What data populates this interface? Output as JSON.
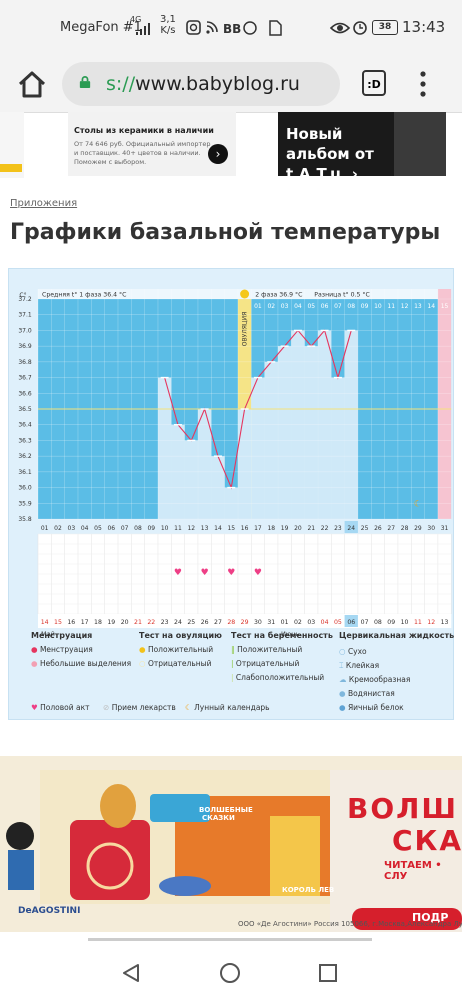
{
  "status_bar": {
    "carrier": "MegaFon #1",
    "network": "4G",
    "speed": "3,1",
    "speed_unit": "K/s",
    "battery": "38",
    "time": "13:43"
  },
  "browser": {
    "url_scheme": "s://",
    "url_host": "www.babyblog.ru",
    "tabs_label": ":D"
  },
  "top_ad": {
    "headline": "Столы из керамики в наличии",
    "body": "От 74 646 руб. Официальный импортер и поставщик. 40+ цветов в наличии. Поможем с выбором.",
    "side_label": "Новый альбом от t.A.T.u. ›"
  },
  "breadcrumb": "Приложения",
  "page_title": "Графики базальной температуры",
  "chart": {
    "unit": "C°",
    "phase1_label": "Средняя t° 1 фаза 36.4 °C",
    "phase2_label": "2 фаза 36.9 °C",
    "diff_label": "Разница t° 0.5 °C",
    "ovulation_label": "ОВУЛЯЦИЯ",
    "cycle_days_top": [
      "01",
      "02",
      "03",
      "04",
      "05",
      "06",
      "07",
      "08",
      "09",
      "10",
      "11",
      "12",
      "13",
      "14",
      "15",
      "16"
    ],
    "cycle_days_top_start": 16,
    "bottom_dates": [
      "14",
      "15",
      "16",
      "17",
      "18",
      "19",
      "20",
      "21",
      "22",
      "23",
      "24",
      "25",
      "26",
      "27",
      "28",
      "29",
      "30",
      "31",
      "01",
      "02",
      "03",
      "04",
      "05",
      "06",
      "07",
      "08",
      "09",
      "10",
      "11",
      "12",
      "13"
    ],
    "month_start": "Май",
    "month_next": "Июнь",
    "red_dates": [
      1,
      2,
      8,
      9,
      15,
      16,
      22,
      23,
      29,
      30
    ]
  },
  "chart_data": {
    "type": "line",
    "x": [
      1,
      2,
      3,
      4,
      5,
      6,
      7,
      8,
      9,
      10,
      11,
      12,
      13,
      14,
      15,
      16,
      17,
      18,
      19,
      20,
      21,
      22,
      23,
      24,
      25,
      26,
      27,
      28,
      29,
      30,
      31
    ],
    "series": [
      {
        "values": [
          null,
          null,
          null,
          null,
          null,
          null,
          null,
          null,
          null,
          36.7,
          36.4,
          36.3,
          36.5,
          36.2,
          36.0,
          36.5,
          36.7,
          36.8,
          36.9,
          37.0,
          36.9,
          37.0,
          36.7,
          37.0,
          null,
          null,
          null,
          null,
          null,
          null,
          null
        ]
      }
    ],
    "yticks": [
      35.8,
      35.9,
      36.0,
      36.1,
      36.2,
      36.3,
      36.4,
      36.5,
      36.6,
      36.7,
      36.8,
      36.9,
      37.0,
      37.1,
      37.2
    ],
    "ylim": [
      35.8,
      37.2
    ],
    "cover_line": 36.5,
    "ovulation_day": 16,
    "today": 24,
    "intercourse_days": [
      11,
      13,
      15,
      17
    ],
    "moon_day": 29
  },
  "legend": {
    "menstruation": {
      "title": "Менструация",
      "items": [
        "Менструация",
        "Небольшие выделения"
      ]
    },
    "ovulation_test": {
      "title": "Тест на овуляцию",
      "items": [
        "Положительный",
        "Отрицательный"
      ]
    },
    "pregnancy_test": {
      "title": "Тест на беременность",
      "items": [
        "Положительный",
        "Отрицательный",
        "Слабоположительный"
      ]
    },
    "cervical": {
      "title": "Цервикальная жидкость",
      "items": [
        "Сухо",
        "Клейкая",
        "Кремообразная",
        "Водянистая",
        "Яичный белок"
      ]
    },
    "extra": [
      "Половой акт",
      "Прием лекарств",
      "Лунный календарь"
    ]
  },
  "bottom_ad": {
    "headline_1": "ВОЛШ",
    "headline_2": "СКА",
    "sub": "ЧИТАЕМ • СЛУ",
    "button": "ПОДР",
    "brand": "DeAGOSTINI",
    "footer": "ООО «Де Агостини» Россия 105066, г.Москва,Александра Лукь",
    "box_title_1": "ВОЛШЕБНЫЕ",
    "box_title_2": "СКАЗКИ",
    "box_sub": "КОРОЛЬ ЛЕВ"
  },
  "colors": {
    "chart_bg": "#5bbde6",
    "fill": "#cfe9f8",
    "line": "#e5365f",
    "ovulation": "#f5e487",
    "today": "#a6d8f3"
  }
}
